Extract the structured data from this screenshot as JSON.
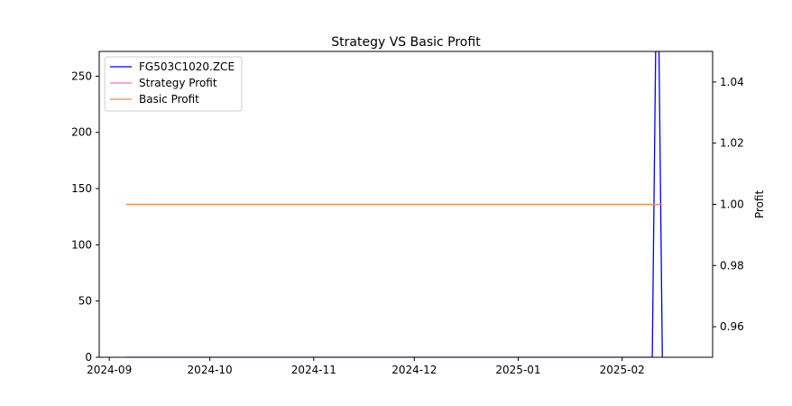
{
  "chart_data": {
    "type": "line",
    "title": "Strategy VS Basic Profit",
    "xlabel": "",
    "ylabel_left": "",
    "ylabel_right": "Profit",
    "x_ticks": [
      "2024-09",
      "2024-10",
      "2024-11",
      "2024-12",
      "2025-01",
      "2025-02"
    ],
    "x_tick_dates": [
      "2024-09-01",
      "2024-10-01",
      "2024-11-01",
      "2024-12-01",
      "2025-01-01",
      "2025-02-01"
    ],
    "xlim": [
      "2024-08-29",
      "2025-02-28"
    ],
    "y_left_ticks": [
      0,
      50,
      100,
      150,
      200,
      250
    ],
    "y_left_lim": [
      0,
      272
    ],
    "y_right_ticks": [
      0.96,
      0.98,
      1.0,
      1.02,
      1.04
    ],
    "y_right_tick_labels": [
      "0.96",
      "0.98",
      "1.00",
      "1.02",
      "1.04"
    ],
    "y_right_lim": [
      0.95,
      1.05
    ],
    "grid": false,
    "legend_position": "top-left",
    "series": [
      {
        "name": "FG503C1020.ZCE",
        "axis": "left",
        "color": "#0000ff",
        "points": [
          {
            "x": "2024-09-06",
            "y": 0
          },
          {
            "x": "2025-02-10",
            "y": 0
          },
          {
            "x": "2025-02-11",
            "y": 272
          },
          {
            "x": "2025-02-12",
            "y": 272
          },
          {
            "x": "2025-02-13",
            "y": 0
          }
        ]
      },
      {
        "name": "Strategy Profit",
        "axis": "right",
        "color": "#ff69b4",
        "points": [
          {
            "x": "2024-09-06",
            "y": 1.0
          },
          {
            "x": "2025-02-13",
            "y": 1.0
          }
        ]
      },
      {
        "name": "Basic Profit",
        "axis": "right",
        "color": "#ff8c42",
        "points": [
          {
            "x": "2024-09-06",
            "y": 1.0
          },
          {
            "x": "2025-02-13",
            "y": 1.0
          }
        ]
      }
    ]
  }
}
